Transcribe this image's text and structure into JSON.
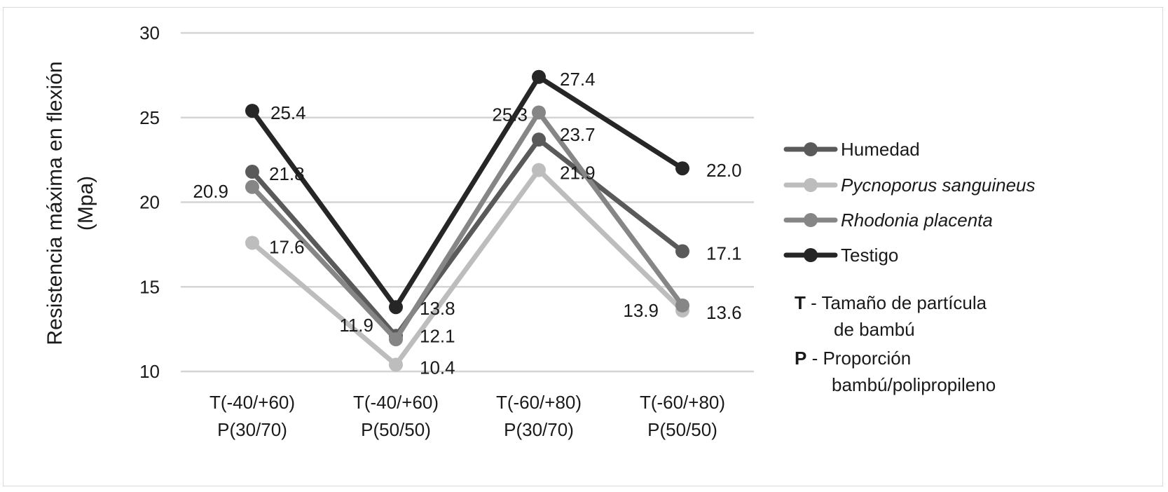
{
  "chart_data": {
    "type": "line",
    "title": "",
    "ylabel": [
      "Resistencia máxima en flexión",
      "(Mpa)"
    ],
    "xlabel": "",
    "ylim": [
      10,
      30
    ],
    "yticks": [
      "10",
      "15",
      "20",
      "25",
      "30"
    ],
    "categories": [
      [
        "T(-40/+60)",
        "P(30/70)"
      ],
      [
        "T(-40/+60)",
        "P(50/50)"
      ],
      [
        "T(-60/+80)",
        "P(30/70)"
      ],
      [
        "T(-60/+80)",
        "P(50/50)"
      ]
    ],
    "grid": true,
    "legend_position": "right",
    "series": [
      {
        "name": "Humedad",
        "italic": false,
        "color": "#5a5a5a",
        "values": [
          21.8,
          12.1,
          23.7,
          17.1
        ],
        "labels": [
          "21.8",
          "12.1",
          "23.7",
          "17.1"
        ]
      },
      {
        "name": "Pycnoporus sanguineus",
        "italic": true,
        "color": "#bdbdbd",
        "values": [
          17.6,
          10.4,
          21.9,
          13.6
        ],
        "labels": [
          "17.6",
          "10.4",
          "21.9",
          "13.6"
        ]
      },
      {
        "name": "Rhodonia placenta",
        "italic": true,
        "color": "#868686",
        "values": [
          20.9,
          11.9,
          25.3,
          13.9
        ],
        "labels": [
          "20.9",
          "11.9",
          "25.3",
          "13.9"
        ]
      },
      {
        "name": "Testigo",
        "italic": false,
        "color": "#262626",
        "values": [
          25.4,
          13.8,
          27.4,
          22.0
        ],
        "labels": [
          "25.4",
          "13.8",
          "27.4",
          "22.0"
        ]
      }
    ],
    "notes": [
      {
        "key": "T",
        "sep": "-",
        "lines": [
          "Tamaño de partícula",
          "de bambú"
        ]
      },
      {
        "key": "P",
        "sep": "-",
        "lines": [
          "Proporción",
          "bambú/polipropileno"
        ]
      }
    ]
  }
}
